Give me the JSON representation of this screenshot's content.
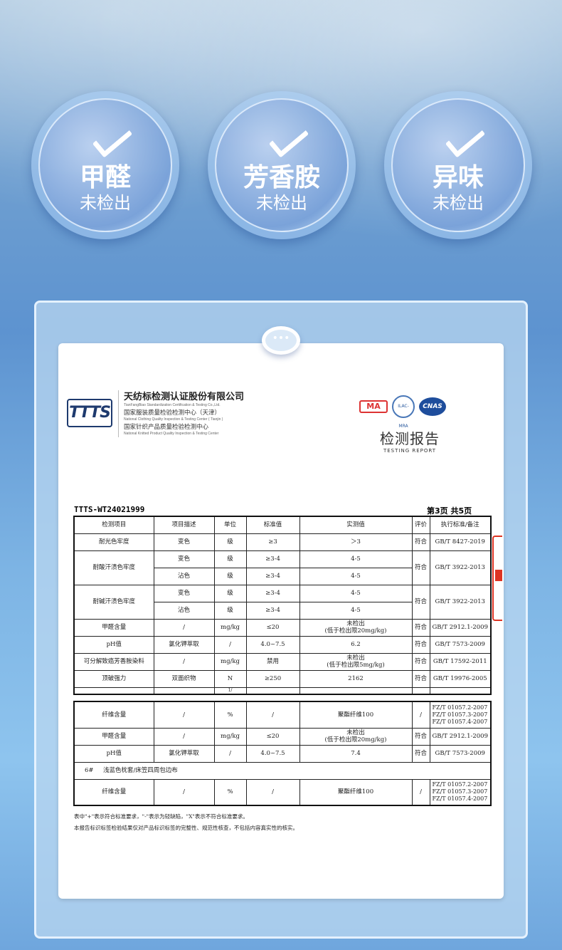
{
  "badges": [
    {
      "title": "甲醛",
      "sub": "未检出",
      "icon": "check-icon"
    },
    {
      "title": "芳香胺",
      "sub": "未检出",
      "icon": "check-icon"
    },
    {
      "title": "异味",
      "sub": "未检出",
      "icon": "check-icon"
    }
  ],
  "clip": "•••",
  "report": {
    "logo": "TTTS",
    "org_cn": "天纺标检测认证股份有限公司",
    "org_en": "TianFangBiao Standardization Certification & Testing Co.,Ltd.",
    "center1_cn": "国家服装质量检验检测中心（天津）",
    "center1_en": "National Clothing Quality Inspection & Testing Center ( Tianjin )",
    "center2_cn": "国家针织产品质量检验检测中心",
    "center2_en": "National Knitted Product Quality Inspection & Testing Center",
    "marks": {
      "ma": "MA",
      "ilac": "ILAC-MRA",
      "cnas": "CNAS"
    },
    "title_cn": "检测报告",
    "title_en": "TESTING REPORT",
    "number": "TTTS-WT24021999",
    "page": "第3页  共5页",
    "headers": [
      "检测项目",
      "项目描述",
      "单位",
      "标准值",
      "实测值",
      "评价",
      "执行标准/备注"
    ],
    "rows": [
      [
        "耐光色牢度",
        "变色",
        "级",
        "≥3",
        "＞3",
        "符合",
        "GB/T 8427-2019"
      ],
      [
        "耐酸汗渍色牢度",
        "变色",
        "级",
        "≥3-4",
        "4-5",
        "符合",
        "GB/T 3922-2013"
      ],
      [
        "",
        "沾色",
        "级",
        "≥3-4",
        "4-5"
      ],
      [
        "耐碱汗渍色牢度",
        "变色",
        "级",
        "≥3-4",
        "4-5",
        "符合",
        "GB/T 3922-2013"
      ],
      [
        "",
        "沾色",
        "级",
        "≥3-4",
        "4-5"
      ],
      [
        "甲醛含量",
        "/",
        "mg/kg",
        "≤20",
        "未检出\n(低于检出限20mg/kg)",
        "符合",
        "GB/T 2912.1-2009"
      ],
      [
        "pH值",
        "氯化钾萃取",
        "/",
        "4.0~7.5",
        "6.2",
        "符合",
        "GB/T 7573-2009"
      ],
      [
        "可分解致癌芳香胺染料",
        "/",
        "mg/kg",
        "禁用",
        "未检出\n(低于检出限5mg/kg)",
        "符合",
        "GB/T 17592-2011"
      ],
      [
        "顶破强力",
        "双面织物",
        "N",
        "≥250",
        "2162",
        "符合",
        "GB/T 19976-2005"
      ]
    ],
    "cut_unit": "1/",
    "rows2": [
      [
        "纤维含量",
        "/",
        "%",
        "/",
        "聚酯纤维100",
        "/",
        "FZ/T 01057.2-2007\nFZ/T 01057.3-2007\nFZ/T 01057.4-2007"
      ],
      [
        "甲醛含量",
        "/",
        "mg/kg",
        "≤20",
        "未检出\n(低于检出限20mg/kg)",
        "符合",
        "GB/T 2912.1-2009"
      ],
      [
        "pH值",
        "氯化钾萃取",
        "/",
        "4.0~7.5",
        "7.4",
        "符合",
        "GB/T 7573-2009"
      ]
    ],
    "section": {
      "no": "6#",
      "name": "浅蓝色枕套/床笠四周包边布"
    },
    "rows3": [
      [
        "纤维含量",
        "/",
        "%",
        "/",
        "聚酯纤维100",
        "/",
        "FZ/T 01057.2-2007\nFZ/T 01057.3-2007\nFZ/T 01057.4-2007"
      ]
    ],
    "note1": "表中\"+\"表示符合标准要求，\"-\"表示为轻缺陷，\"X\"表示不符合标准要求。",
    "note2": "本报告标识标签检验结果仅对产品标识标签的完整性、规范性核查，不包括内容真实性的核实。"
  },
  "colors": {
    "stamp": "#dd3322",
    "ink": "#1e3a6e"
  }
}
